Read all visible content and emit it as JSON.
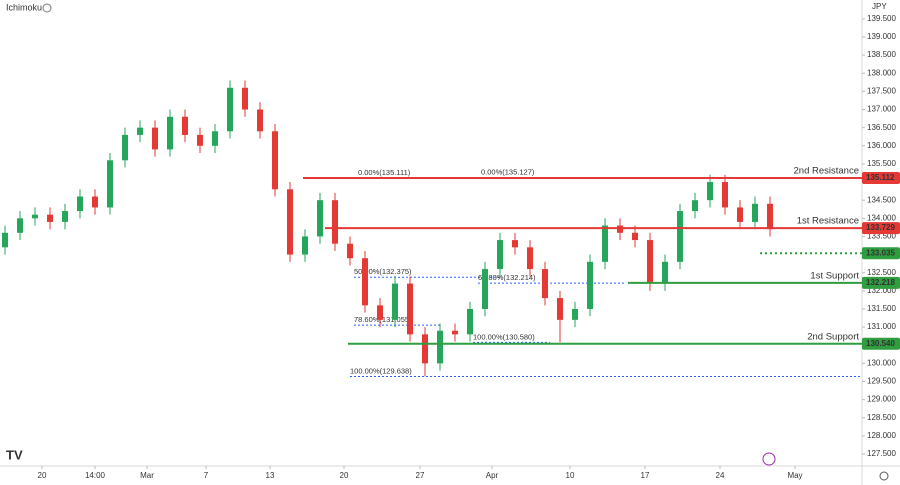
{
  "chart_data": {
    "type": "candlestick",
    "indicator": "Ichimoku",
    "currency": "JPY",
    "x": [
      1,
      4,
      7,
      10,
      13,
      16,
      19,
      22,
      25,
      28,
      31,
      34,
      37,
      40,
      43,
      46,
      49,
      52,
      55,
      58,
      61,
      64,
      67,
      70,
      73,
      76,
      79,
      82,
      85,
      88,
      91,
      94,
      97,
      100,
      103,
      106,
      109,
      112,
      115,
      118,
      121,
      124,
      127,
      130,
      133,
      136,
      139,
      142,
      145,
      148,
      151,
      154
    ],
    "open": [
      133.2,
      133.6,
      134.0,
      134.1,
      133.9,
      134.2,
      134.6,
      134.3,
      135.6,
      136.3,
      136.5,
      135.9,
      136.8,
      136.3,
      136.0,
      136.4,
      137.6,
      137.0,
      136.4,
      134.8,
      133.0,
      133.5,
      134.5,
      133.3,
      132.9,
      131.6,
      131.2,
      132.2,
      130.8,
      130.0,
      130.9,
      130.8,
      131.5,
      132.6,
      133.4,
      133.2,
      132.6,
      131.8,
      131.2,
      131.5,
      132.8,
      133.8,
      133.6,
      133.4,
      132.2,
      132.8,
      134.2,
      134.5,
      135.0,
      134.3,
      133.9,
      134.4
    ],
    "high": [
      133.8,
      134.2,
      134.3,
      134.3,
      134.4,
      134.8,
      134.8,
      135.8,
      136.5,
      136.7,
      136.7,
      137.0,
      137.0,
      136.5,
      136.6,
      137.8,
      137.8,
      137.2,
      136.6,
      135.0,
      133.7,
      134.7,
      134.7,
      133.5,
      133.1,
      131.8,
      132.4,
      132.4,
      131.0,
      131.1,
      131.1,
      131.7,
      132.8,
      133.6,
      133.6,
      133.4,
      132.8,
      132.0,
      131.7,
      133.0,
      134.0,
      134.0,
      133.8,
      133.6,
      133.0,
      134.4,
      134.7,
      135.2,
      135.2,
      134.5,
      134.6,
      134.6
    ],
    "low": [
      133.0,
      133.4,
      133.8,
      133.7,
      133.7,
      134.0,
      134.1,
      134.1,
      135.4,
      136.1,
      135.7,
      135.7,
      136.1,
      135.8,
      135.8,
      136.2,
      136.8,
      136.2,
      134.6,
      132.8,
      132.8,
      133.3,
      133.1,
      132.7,
      131.4,
      131.0,
      131.0,
      130.6,
      129.64,
      129.8,
      130.6,
      130.6,
      131.3,
      132.4,
      133.0,
      132.4,
      131.6,
      130.58,
      131.0,
      131.3,
      132.6,
      133.4,
      133.2,
      132.0,
      132.0,
      132.6,
      134.0,
      134.3,
      134.1,
      133.7,
      133.7,
      133.5
    ],
    "close": [
      133.6,
      134.0,
      134.1,
      133.9,
      134.2,
      134.6,
      134.3,
      135.6,
      136.3,
      136.5,
      135.9,
      136.8,
      136.3,
      136.0,
      136.4,
      137.6,
      137.0,
      136.4,
      134.8,
      133.0,
      133.5,
      134.5,
      133.3,
      132.9,
      131.6,
      131.2,
      132.2,
      130.8,
      130.0,
      130.9,
      130.8,
      131.5,
      132.6,
      133.4,
      133.2,
      132.6,
      131.8,
      131.2,
      131.5,
      132.8,
      133.8,
      133.6,
      133.4,
      132.2,
      132.8,
      134.2,
      134.5,
      135.0,
      134.3,
      133.9,
      134.4,
      133.7
    ],
    "up_color": "#26a65b",
    "down_color": "#e53935",
    "xlim": [
      0,
      172.4
    ],
    "xticks": [
      {
        "value": 8.4,
        "label": "20"
      },
      {
        "value": 19,
        "label": "14:00"
      },
      {
        "value": 29.4,
        "label": "Mar"
      },
      {
        "value": 41.2,
        "label": "7"
      },
      {
        "value": 54,
        "label": "13"
      },
      {
        "value": 68.8,
        "label": "20"
      },
      {
        "value": 84,
        "label": "27"
      },
      {
        "value": 98.4,
        "label": "Apr"
      },
      {
        "value": 114,
        "label": "10"
      },
      {
        "value": 129,
        "label": "17"
      },
      {
        "value": 144,
        "label": "24"
      },
      {
        "value": 159,
        "label": "May"
      }
    ],
    "ylim": [
      127.17,
      140.02
    ],
    "yticks": [
      {
        "value": 127.5,
        "label": "127.500"
      },
      {
        "value": 128,
        "label": "128.000"
      },
      {
        "value": 128.5,
        "label": "128.500"
      },
      {
        "value": 129,
        "label": "129.000"
      },
      {
        "value": 129.5,
        "label": "129.500"
      },
      {
        "value": 130,
        "label": "130.000"
      },
      {
        "value": 130.5,
        "label": "130.500"
      },
      {
        "value": 131,
        "label": "131.000"
      },
      {
        "value": 131.5,
        "label": "131.500"
      },
      {
        "value": 132,
        "label": "132.000"
      },
      {
        "value": 132.5,
        "label": "132.500"
      },
      {
        "value": 133,
        "label": "133.000"
      },
      {
        "value": 133.5,
        "label": "133.500"
      },
      {
        "value": 134,
        "label": "134.000"
      },
      {
        "value": 134.5,
        "label": "134.500"
      },
      {
        "value": 135,
        "label": "135.000"
      },
      {
        "value": 135.5,
        "label": "135.500"
      },
      {
        "value": 136,
        "label": "136.000"
      },
      {
        "value": 136.5,
        "label": "136.500"
      },
      {
        "value": 137,
        "label": "137.000"
      },
      {
        "value": 137.5,
        "label": "137.500"
      },
      {
        "value": 138,
        "label": "138.000"
      },
      {
        "value": 138.5,
        "label": "138.500"
      },
      {
        "value": 139,
        "label": "139.000"
      },
      {
        "value": 139.5,
        "label": "139.500"
      }
    ],
    "levels": [
      {
        "name": "2nd Resistance",
        "price": 135.112,
        "color": "#e53935",
        "x_start": 60.6,
        "style": "solid"
      },
      {
        "name": "1st Resistance",
        "price": 133.729,
        "color": "#e53935",
        "x_start": 65,
        "style": "solid"
      },
      {
        "price": 133.035,
        "color": "#2e9e3f",
        "x_start": 152,
        "style": "dotted"
      },
      {
        "name": "1st Support",
        "price": 132.218,
        "color": "#2e9e3f",
        "x_start": 125.6,
        "style": "solid"
      },
      {
        "name": "2nd Support",
        "price": 130.54,
        "price_label": "130.540",
        "color": "#2e9e3f",
        "x_start": 69.6,
        "style": "solid"
      }
    ],
    "fib_color": "#2962ff",
    "fibs": [
      {
        "text": "0.00%(135.111)",
        "price": 135.111,
        "x": 71.6,
        "x_end": 98
      },
      {
        "text": "0.00%(135.127)",
        "price": 135.127,
        "x": 96.2,
        "x_end": 130
      },
      {
        "text": "50.00%(132.375)",
        "price": 132.375,
        "x": 70.8,
        "x_end": 100
      },
      {
        "text": "61.80%(132.214)",
        "price": 132.214,
        "x": 95.6,
        "x_end": 125
      },
      {
        "text": "78.60%(131.055)",
        "price": 131.055,
        "x": 70.8,
        "x_end": 88
      },
      {
        "text": "100.00%(130.580)",
        "price": 130.58,
        "x": 94.6,
        "x_end": 110
      },
      {
        "text": "100.00%(129.638)",
        "price": 129.638,
        "x": 70,
        "x_end": 172.4
      }
    ]
  }
}
